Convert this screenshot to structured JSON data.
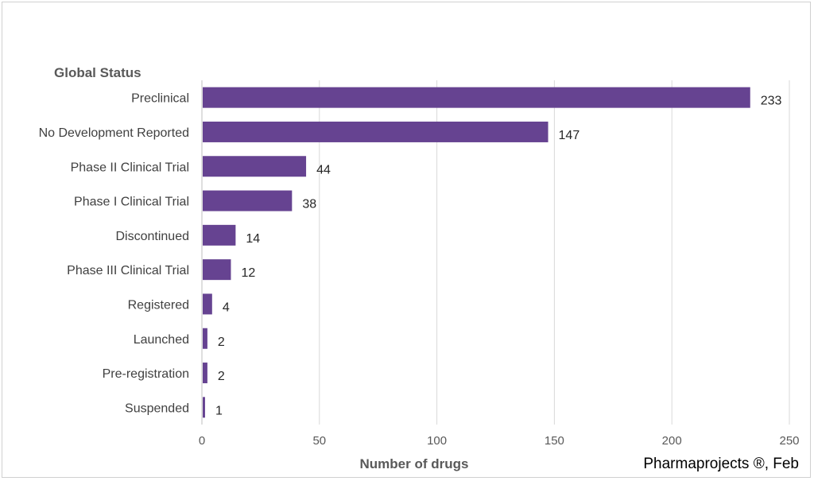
{
  "chart_data": {
    "type": "bar",
    "orientation": "horizontal",
    "title": "",
    "ylabel": "Global Status",
    "xlabel": "Number of drugs",
    "source": "Pharmaprojects ®, Feb",
    "categories": [
      "Preclinical",
      "No Development Reported",
      "Phase II Clinical Trial",
      "Phase I Clinical Trial",
      "Discontinued",
      "Phase III Clinical Trial",
      "Registered",
      "Launched",
      "Pre-registration",
      "Suspended"
    ],
    "values": [
      233,
      147,
      44,
      38,
      14,
      12,
      4,
      2,
      2,
      1
    ],
    "xlim": [
      0,
      250
    ],
    "xticks": [
      0,
      50,
      100,
      150,
      200,
      250
    ],
    "grid": true,
    "bar_color": "#664391",
    "grid_color": "#d9d9d9"
  }
}
